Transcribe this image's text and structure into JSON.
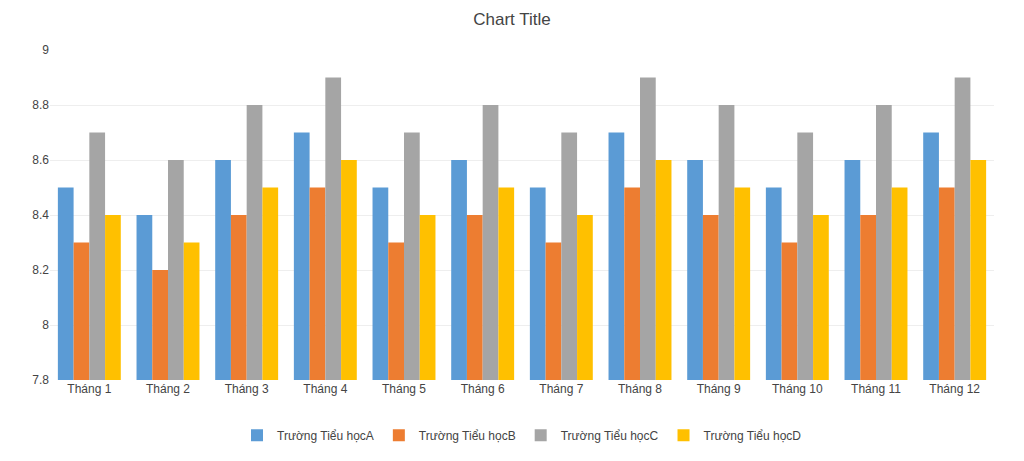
{
  "chart_data": {
    "type": "bar",
    "title": "Chart Title",
    "categories": [
      "Tháng 1",
      "Tháng 2",
      "Tháng 3",
      "Tháng 4",
      "Tháng 5",
      "Tháng 6",
      "Tháng 7",
      "Tháng 8",
      "Tháng 9",
      "Tháng 10",
      "Tháng 11",
      "Tháng 12"
    ],
    "series": [
      {
        "name": "Trường Tiểu học​A",
        "color": "#5B9BD5",
        "values": [
          8.5,
          8.4,
          8.6,
          8.7,
          8.5,
          8.6,
          8.5,
          8.7,
          8.6,
          8.5,
          8.6,
          8.7
        ]
      },
      {
        "name": "Trường Tiểu học​B",
        "color": "#ED7D31",
        "values": [
          8.3,
          8.2,
          8.4,
          8.5,
          8.3,
          8.4,
          8.3,
          8.5,
          8.4,
          8.3,
          8.4,
          8.5
        ]
      },
      {
        "name": "Trường Tiểu học​C",
        "color": "#A5A5A5",
        "values": [
          8.7,
          8.6,
          8.8,
          8.9,
          8.7,
          8.8,
          8.7,
          8.9,
          8.8,
          8.7,
          8.8,
          8.9
        ]
      },
      {
        "name": "Trường Tiểu học​D",
        "color": "#FFC000",
        "values": [
          8.4,
          8.3,
          8.5,
          8.6,
          8.4,
          8.5,
          8.4,
          8.6,
          8.5,
          8.4,
          8.5,
          8.6
        ]
      }
    ],
    "ylim": [
      7.8,
      9.0
    ],
    "yticks": [
      7.8,
      8,
      8.2,
      8.4,
      8.6,
      8.8,
      9
    ],
    "grid": true,
    "legend": "bottom"
  }
}
